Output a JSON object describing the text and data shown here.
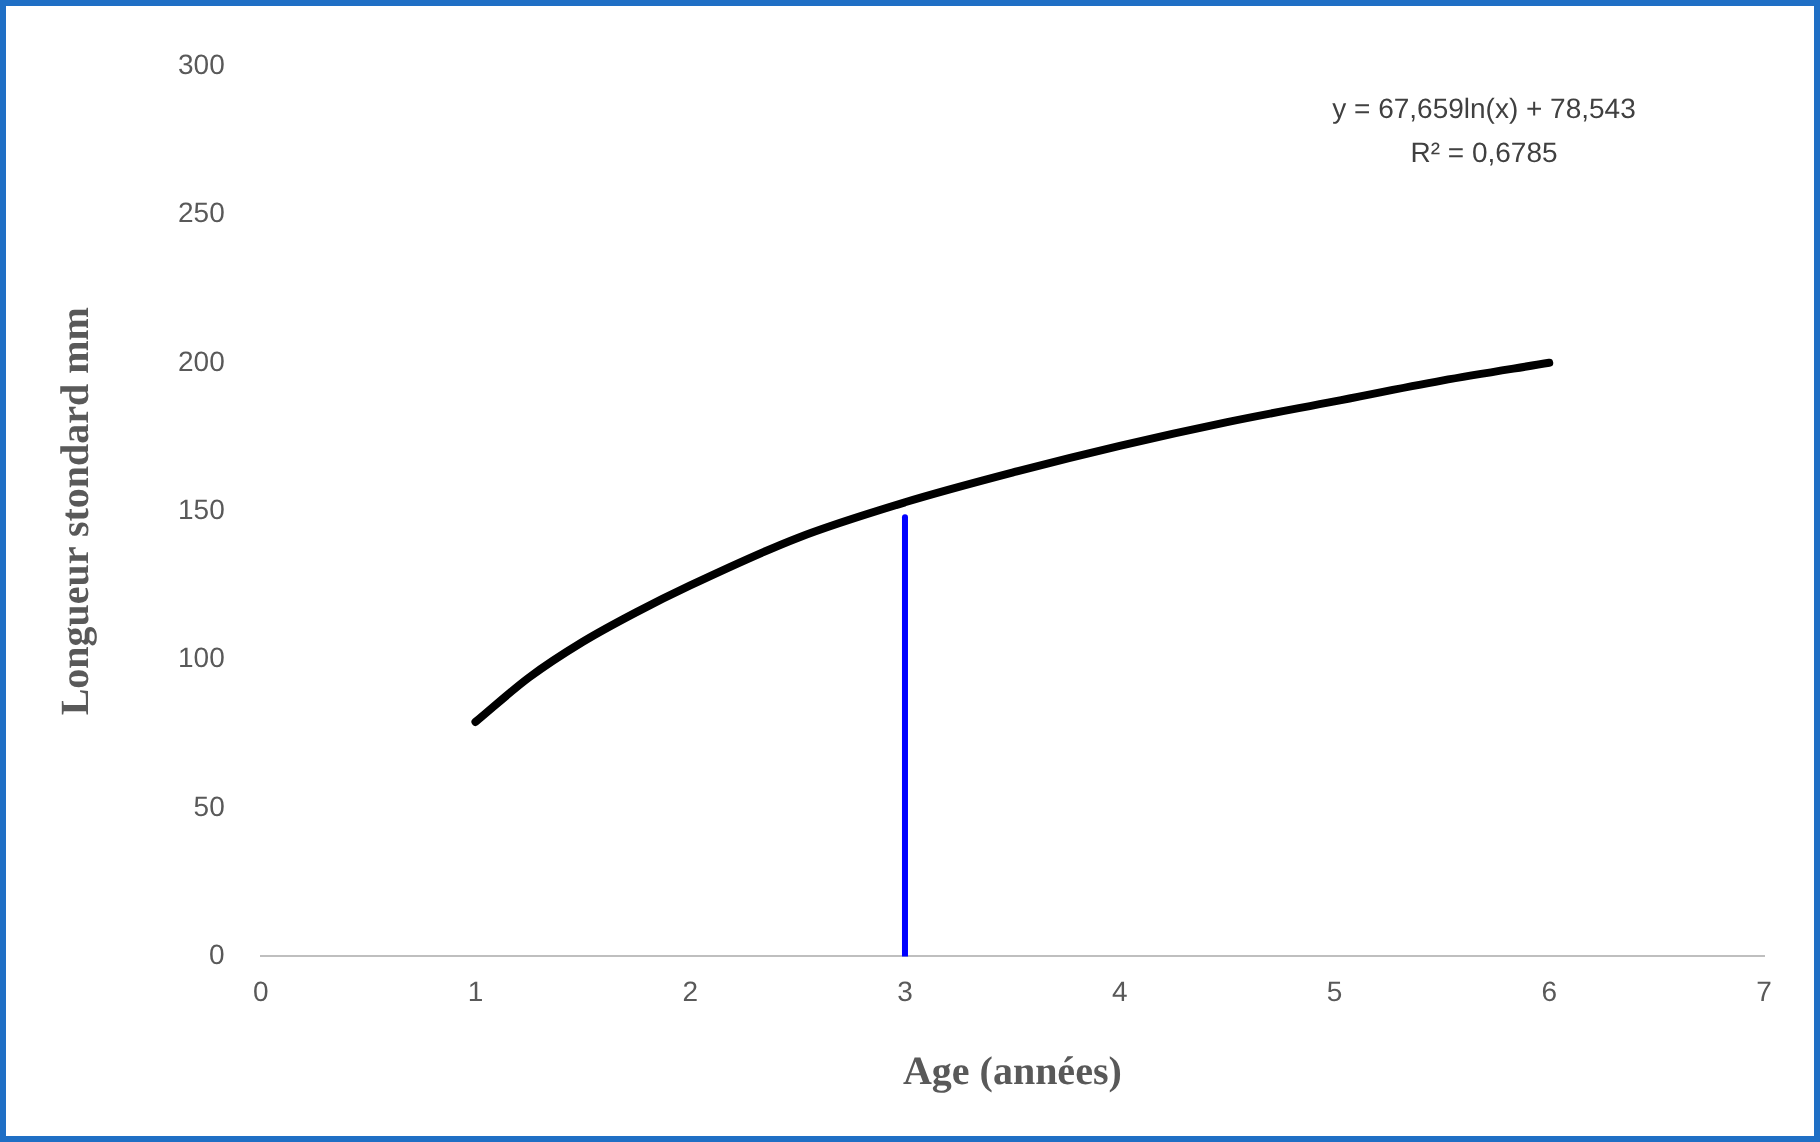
{
  "chart_data": {
    "type": "line",
    "xlabel": "Age (années)",
    "ylabel": "Longueur stondard mm",
    "xlim": [
      0,
      7
    ],
    "xticks": [
      0,
      1,
      2,
      3,
      4,
      5,
      6,
      7
    ],
    "ylim": [
      0,
      300
    ],
    "yticks": [
      0,
      50,
      100,
      150,
      200,
      250,
      300
    ],
    "grid": false,
    "legend": false,
    "marker": "none",
    "line_style": "solid",
    "annotations": [
      "y = 67,659ln(x) + 78,543",
      "R² = 0,6785"
    ],
    "series": [
      {
        "color": "#000000",
        "x": [
          1,
          1.25,
          1.5,
          1.75,
          2,
          2.5,
          3,
          3.5,
          4,
          4.5,
          5,
          5.5,
          6
        ],
        "values": [
          79,
          94,
          106,
          116,
          125,
          141,
          153,
          163,
          172,
          180,
          187,
          194,
          200
        ]
      },
      {
        "color": "#0000ff",
        "x": [
          3,
          3
        ],
        "values": [
          0,
          148
        ]
      }
    ]
  }
}
